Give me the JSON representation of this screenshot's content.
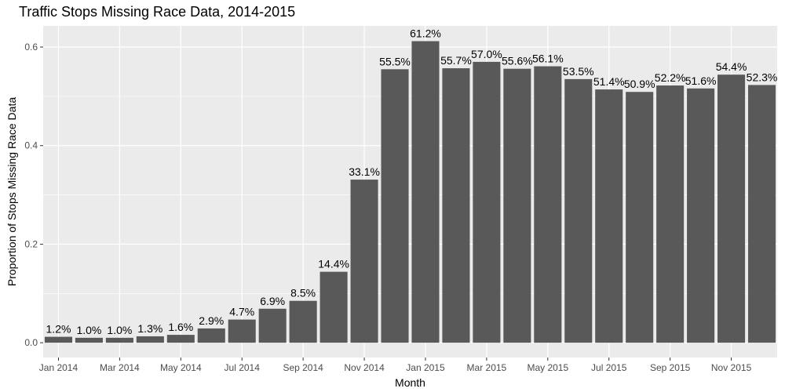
{
  "chart_data": {
    "type": "bar",
    "title": "Traffic Stops Missing Race Data, 2014-2015",
    "xlabel": "Month",
    "ylabel": "Proportion of Stops Missing Race Data",
    "categories": [
      "Jan 2014",
      "Feb 2014",
      "Mar 2014",
      "Apr 2014",
      "May 2014",
      "Jun 2014",
      "Jul 2014",
      "Aug 2014",
      "Sep 2014",
      "Oct 2014",
      "Nov 2014",
      "Dec 2014",
      "Jan 2015",
      "Feb 2015",
      "Mar 2015",
      "Apr 2015",
      "May 2015",
      "Jun 2015",
      "Jul 2015",
      "Aug 2015",
      "Sep 2015",
      "Oct 2015",
      "Nov 2015",
      "Dec 2015"
    ],
    "values": [
      0.012,
      0.01,
      0.01,
      0.013,
      0.016,
      0.029,
      0.047,
      0.069,
      0.085,
      0.144,
      0.331,
      0.555,
      0.612,
      0.557,
      0.57,
      0.556,
      0.561,
      0.535,
      0.514,
      0.509,
      0.522,
      0.516,
      0.544,
      0.523
    ],
    "data_labels": [
      "1.2%",
      "1.0%",
      "1.0%",
      "1.3%",
      "1.6%",
      "2.9%",
      "4.7%",
      "6.9%",
      "8.5%",
      "14.4%",
      "33.1%",
      "55.5%",
      "61.2%",
      "55.7%",
      "57.0%",
      "55.6%",
      "56.1%",
      "53.5%",
      "51.4%",
      "50.9%",
      "52.2%",
      "51.6%",
      "54.4%",
      "52.3%"
    ],
    "x_tick_labels": [
      "Jan 2014",
      "Mar 2014",
      "May 2014",
      "Jul 2014",
      "Sep 2014",
      "Nov 2014",
      "Jan 2015",
      "Mar 2015",
      "May 2015",
      "Jul 2015",
      "Sep 2015",
      "Nov 2015"
    ],
    "y_ticks": [
      0.0,
      0.2,
      0.4,
      0.6
    ],
    "y_tick_labels": [
      "0.0",
      "0.2",
      "0.4",
      "0.6"
    ],
    "ylim": [
      -0.03,
      0.643
    ],
    "grid": true,
    "bar_color": "#595959",
    "panel_color": "#ebebeb",
    "grid_color": "#ffffff"
  }
}
